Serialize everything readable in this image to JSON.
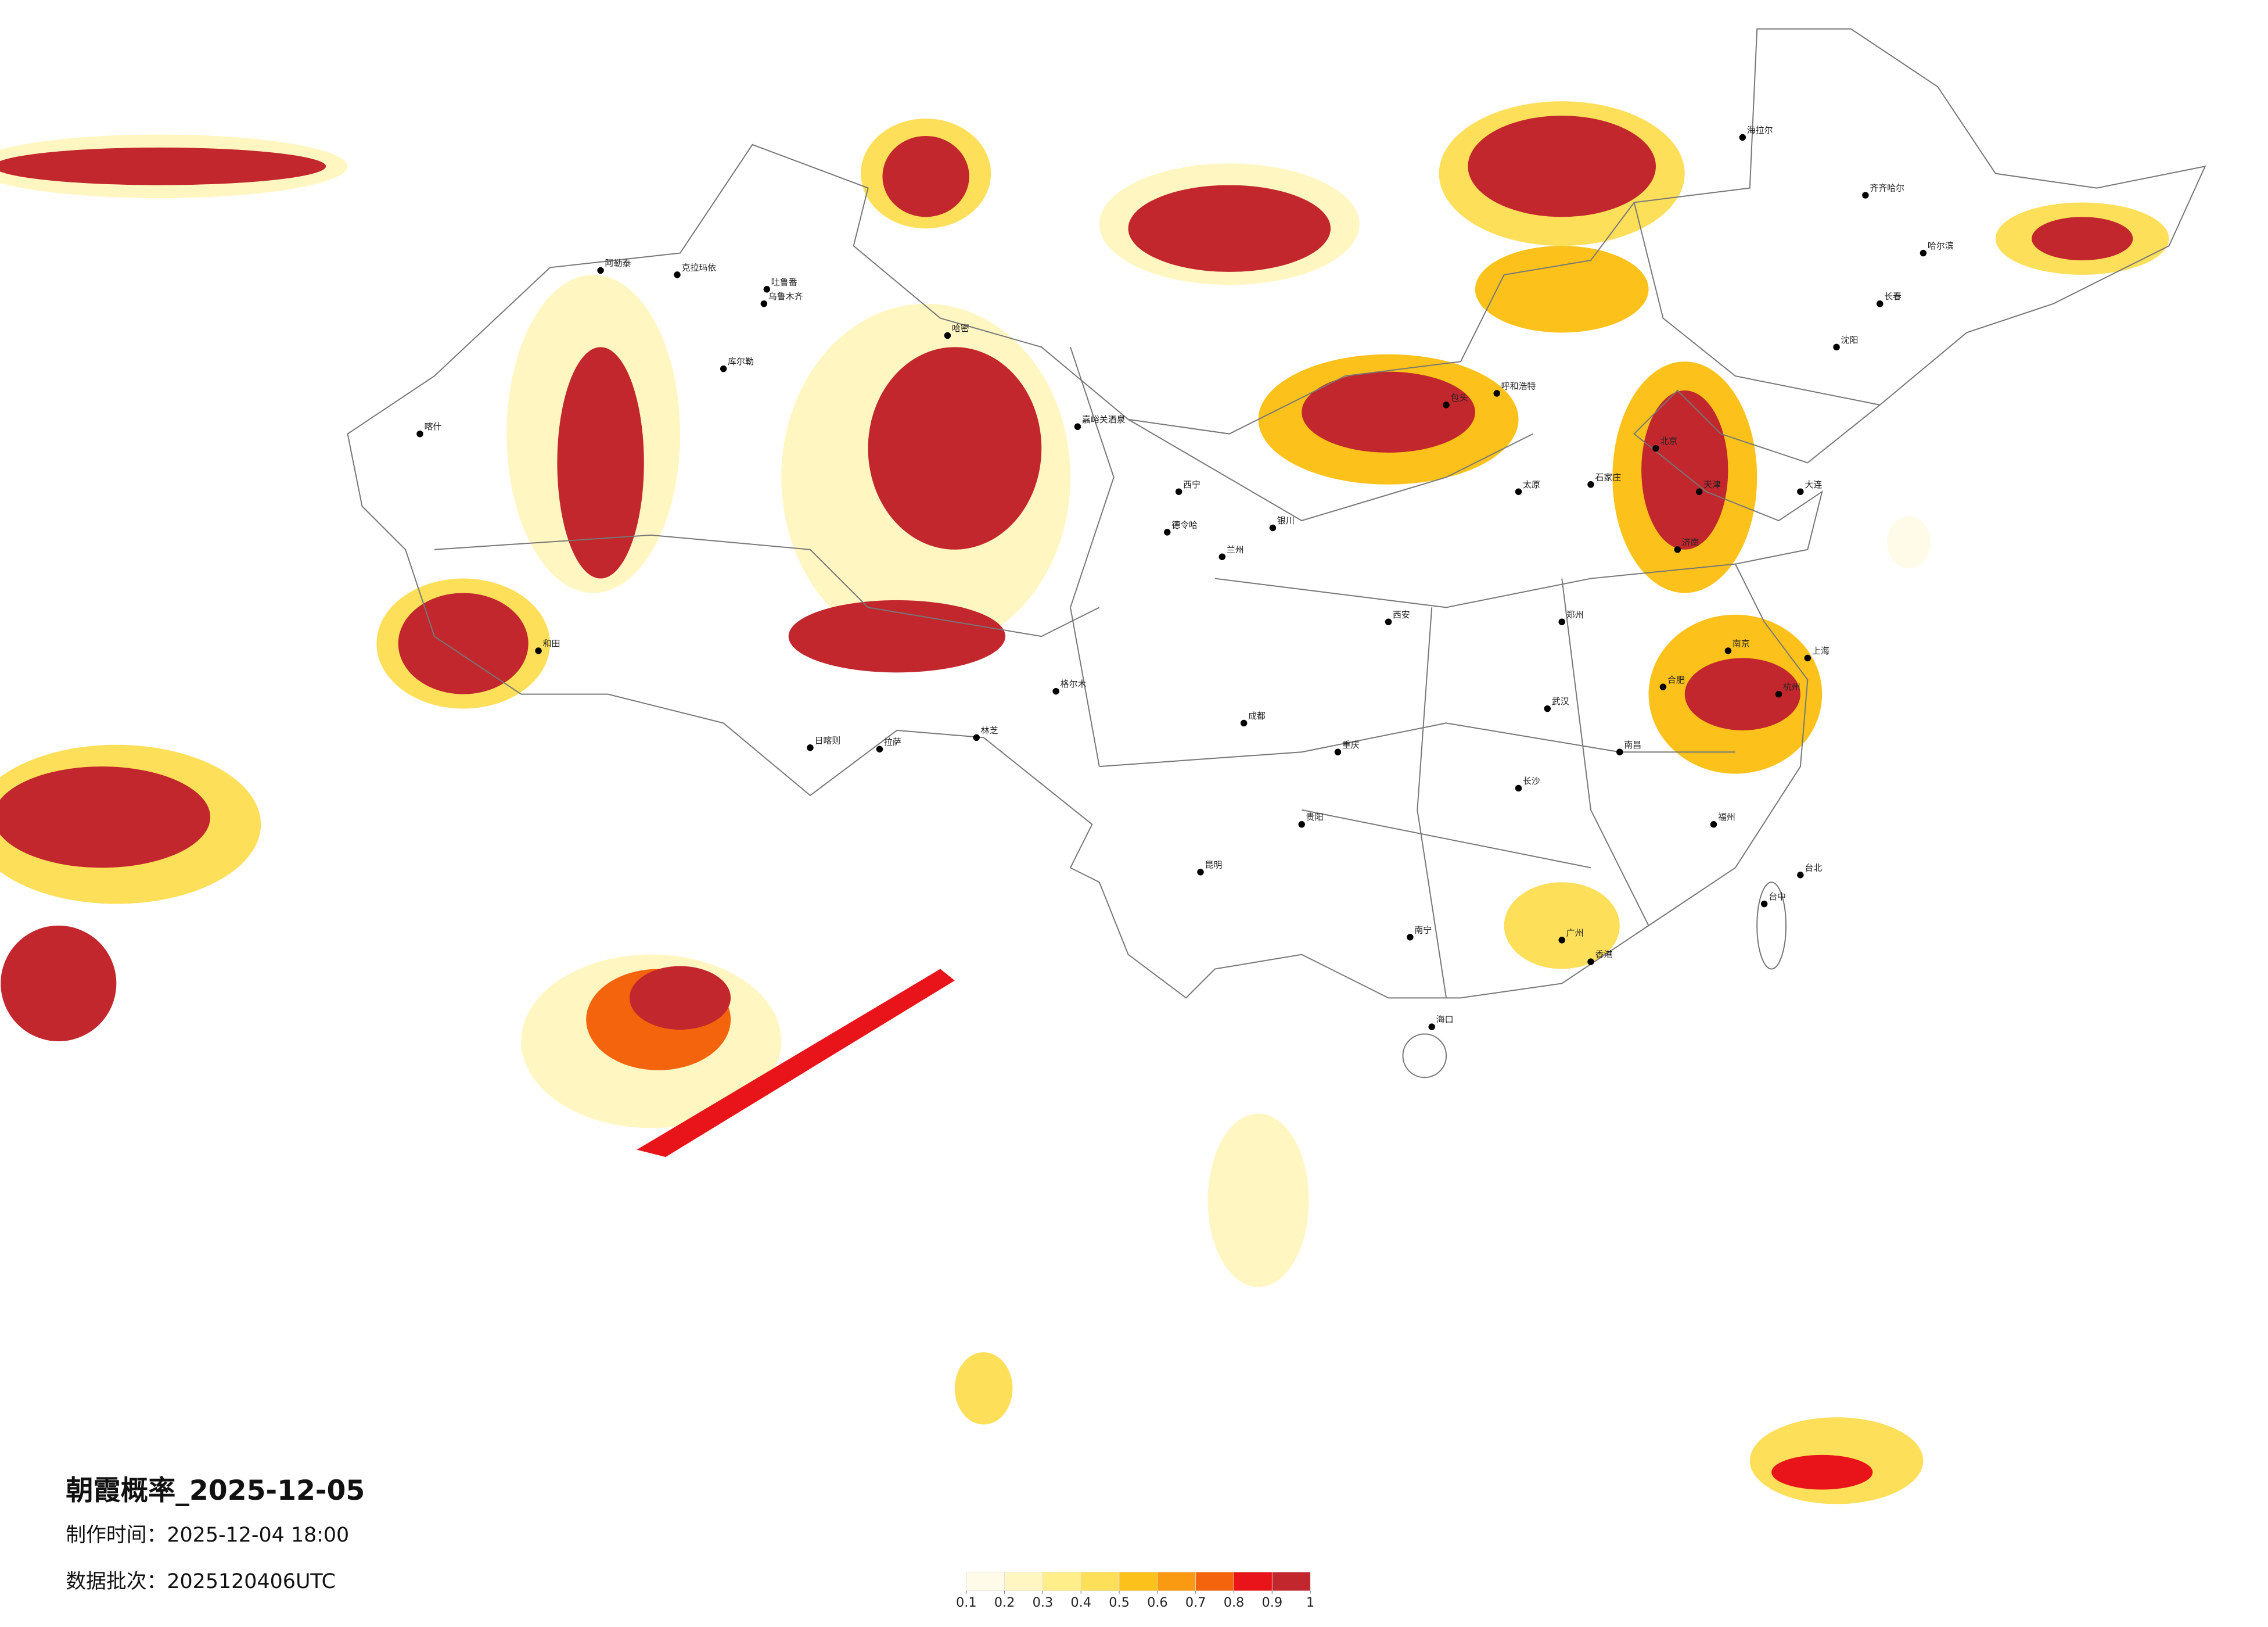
{
  "title": "朝霞概率_2025-12-05",
  "made_time": "制作时间：2025-12-04 18:00",
  "batch": "数据批次：2025120406UTC",
  "legend": {
    "ticks": [
      0.1,
      0.2,
      0.3,
      0.4,
      0.5,
      0.6,
      0.7,
      0.8,
      0.9,
      1
    ],
    "colors": [
      "#fffbe8",
      "#fff6c2",
      "#ffee8a",
      "#fddf5a",
      "#fcc21b",
      "#f99a12",
      "#f4640c",
      "#e8141a",
      "#c1272d"
    ]
  },
  "cities": [
    "乌鲁木齐",
    "克拉玛依",
    "吐鲁番",
    "哈密",
    "库尔勒",
    "喀什",
    "和田",
    "阿勒泰",
    "嘉峪关酒泉",
    "格尔木",
    "德令哈",
    "西宁",
    "兰州",
    "银川",
    "呼和浩特",
    "包头",
    "北京",
    "天津",
    "石家庄",
    "太原",
    "济南",
    "郑州",
    "西安",
    "成都",
    "重庆",
    "拉萨",
    "日喀则",
    "林芝",
    "昆明",
    "贵阳",
    "南宁",
    "广州",
    "海口",
    "长沙",
    "武汉",
    "南昌",
    "福州",
    "杭州",
    "上海",
    "南京",
    "合肥",
    "沈阳",
    "长春",
    "哈尔滨",
    "大连",
    "齐齐哈尔",
    "海拉尔",
    "台北",
    "台中",
    "香港"
  ]
}
